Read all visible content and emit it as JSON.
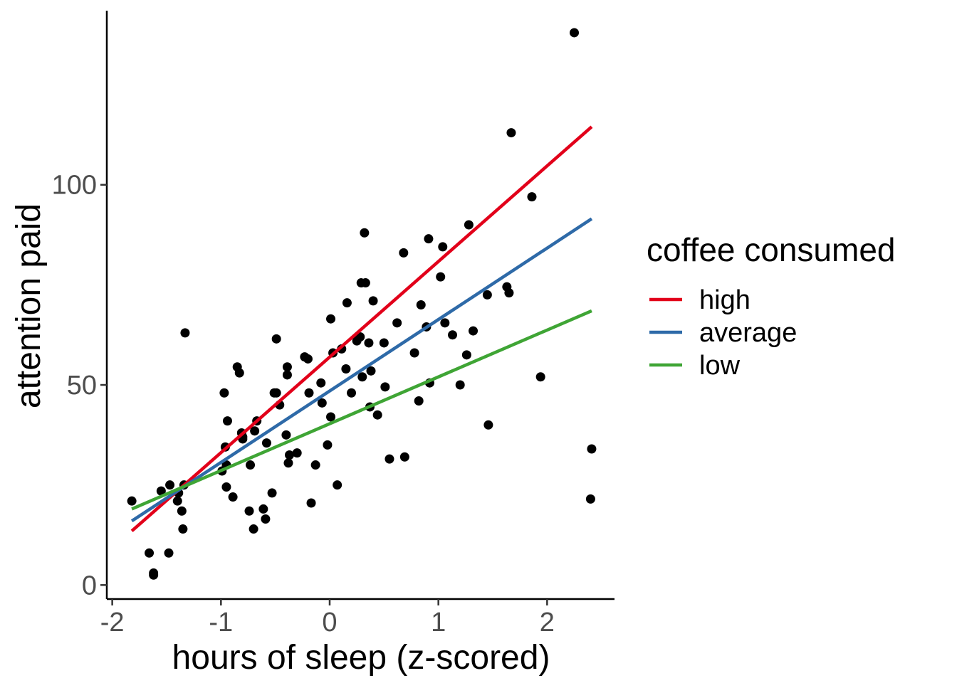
{
  "chart_data": {
    "type": "scatter",
    "xlabel": "hours of sleep (z-scored)",
    "ylabel": "attention paid",
    "xlim": [
      -2.05,
      2.62
    ],
    "ylim": [
      -3.5,
      143.5
    ],
    "x_ticks": [
      -2,
      -1,
      0,
      1,
      2
    ],
    "y_ticks": [
      0,
      50,
      100
    ],
    "x_tick_labels": [
      "-2",
      "-1",
      "0",
      "1",
      "2"
    ],
    "y_tick_labels": [
      "0",
      "50",
      "100"
    ],
    "grid": false,
    "legend": {
      "title": "coffee consumed",
      "position": "right"
    },
    "series": [
      {
        "name": "high",
        "type": "line",
        "color": "#e2001a",
        "x": [
          -1.82,
          2.41
        ],
        "y": [
          13.5,
          114.5
        ]
      },
      {
        "name": "average",
        "type": "line",
        "color": "#2e6aa8",
        "x": [
          -1.82,
          2.41
        ],
        "y": [
          16.0,
          91.5
        ]
      },
      {
        "name": "low",
        "type": "line",
        "color": "#3fa535",
        "x": [
          -1.82,
          2.41
        ],
        "y": [
          19.0,
          68.5
        ]
      }
    ],
    "points": {
      "color": "#000000",
      "x": [
        -1.82,
        -1.66,
        -1.62,
        -1.62,
        -1.55,
        -1.48,
        -1.47,
        -1.4,
        -1.39,
        -1.36,
        -1.35,
        -1.34,
        -1.33,
        -0.99,
        -0.97,
        -0.96,
        -0.95,
        -0.95,
        -0.94,
        -0.89,
        -0.85,
        -0.83,
        -0.81,
        -0.8,
        -0.8,
        -0.74,
        -0.73,
        -0.7,
        -0.69,
        -0.67,
        -0.61,
        -0.59,
        -0.58,
        -0.53,
        -0.51,
        -0.49,
        -0.49,
        -0.46,
        -0.4,
        -0.39,
        -0.39,
        -0.38,
        -0.37,
        -0.3,
        -0.23,
        -0.2,
        -0.19,
        -0.17,
        -0.13,
        -0.08,
        -0.07,
        -0.02,
        0.01,
        0.01,
        0.03,
        0.07,
        0.11,
        0.15,
        0.16,
        0.2,
        0.25,
        0.28,
        0.29,
        0.3,
        0.32,
        0.33,
        0.36,
        0.37,
        0.38,
        0.4,
        0.44,
        0.5,
        0.51,
        0.55,
        0.62,
        0.68,
        0.69,
        0.78,
        0.82,
        0.84,
        0.89,
        0.91,
        0.92,
        1.02,
        1.04,
        1.06,
        1.13,
        1.2,
        1.26,
        1.28,
        1.32,
        1.45,
        1.46,
        1.63,
        1.65,
        1.67,
        1.86,
        1.94,
        2.25,
        2.4,
        2.41
      ],
      "y": [
        21.0,
        8.0,
        2.5,
        3.0,
        23.5,
        8.0,
        25.0,
        21.0,
        23.0,
        18.5,
        14.0,
        25.0,
        63.0,
        28.5,
        48.0,
        34.5,
        30.0,
        24.5,
        41.0,
        22.0,
        54.5,
        53.0,
        38.0,
        36.5,
        37.0,
        18.5,
        30.0,
        14.0,
        38.5,
        41.0,
        19.0,
        16.5,
        35.5,
        23.0,
        48.0,
        61.5,
        48.0,
        45.0,
        37.5,
        54.5,
        52.5,
        30.5,
        32.5,
        33.0,
        57.0,
        56.5,
        48.0,
        20.5,
        30.0,
        50.5,
        45.5,
        35.0,
        66.5,
        42.0,
        58.0,
        25.0,
        59.0,
        54.0,
        70.5,
        48.0,
        61.0,
        62.0,
        75.5,
        52.0,
        88.0,
        75.5,
        60.5,
        44.5,
        53.5,
        71.0,
        42.5,
        60.5,
        49.5,
        31.5,
        65.5,
        83.0,
        32.0,
        58.0,
        46.0,
        70.0,
        64.5,
        86.5,
        50.5,
        77.0,
        84.5,
        65.5,
        62.5,
        50.0,
        57.5,
        90.0,
        63.5,
        72.5,
        40.0,
        74.5,
        73.0,
        113.0,
        97.0,
        52.0,
        138.0,
        21.5,
        34.0
      ]
    }
  }
}
